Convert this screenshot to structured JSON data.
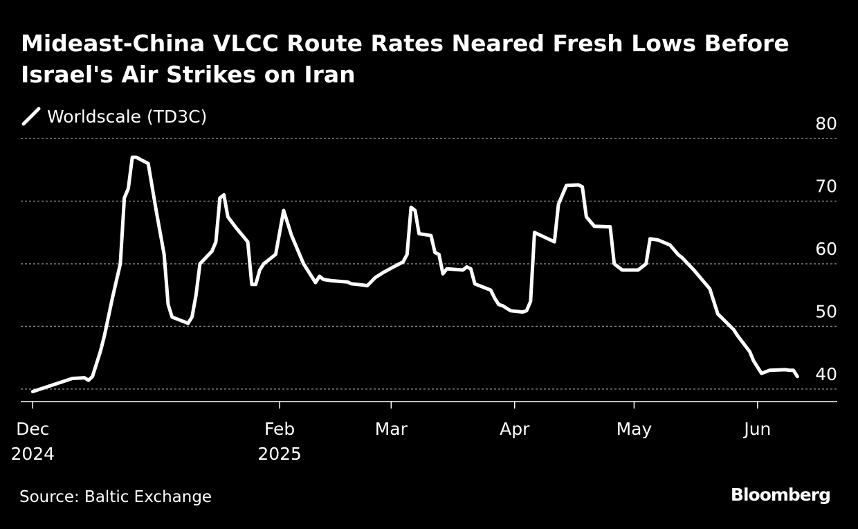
{
  "chart_data": {
    "type": "line",
    "title": "Mideast-China VLCC Route Rates Neared Fresh Lows Before Israel's Air Strikes on Iran",
    "xlabel": "",
    "ylabel": "",
    "ylim": [
      38,
      80
    ],
    "yticks": [
      40,
      50,
      60,
      70,
      80
    ],
    "xlim": [
      "2024-11-28",
      "2025-06-21"
    ],
    "xticks": [
      {
        "date": "2024-12-01",
        "label": "Dec",
        "sublabel": "2024"
      },
      {
        "date": "2025-02-01",
        "label": "Feb",
        "sublabel": "2025"
      },
      {
        "date": "2025-03-01",
        "label": "Mar",
        "sublabel": ""
      },
      {
        "date": "2025-04-01",
        "label": "Apr",
        "sublabel": ""
      },
      {
        "date": "2025-05-01",
        "label": "May",
        "sublabel": ""
      },
      {
        "date": "2025-06-01",
        "label": "Jun",
        "sublabel": ""
      }
    ],
    "grid": true,
    "legend_position": "top-left",
    "series": [
      {
        "name": "Worldscale (TD3C)",
        "color": "#ffffff",
        "points": [
          [
            "2024-12-01",
            39.6
          ],
          [
            "2024-12-11",
            41.7
          ],
          [
            "2024-12-14",
            41.8
          ],
          [
            "2024-12-15",
            41.4
          ],
          [
            "2024-12-16",
            42.0
          ],
          [
            "2024-12-18",
            46.0
          ],
          [
            "2024-12-19",
            48.5
          ],
          [
            "2024-12-21",
            54.5
          ],
          [
            "2024-12-23",
            60.0
          ],
          [
            "2024-12-24",
            70.5
          ],
          [
            "2024-12-25",
            72.0
          ],
          [
            "2024-12-26",
            77.0
          ],
          [
            "2024-12-27",
            77.0
          ],
          [
            "2024-12-30",
            76.0
          ],
          [
            "2025-01-01",
            68.5
          ],
          [
            "2025-01-03",
            61.5
          ],
          [
            "2025-01-04",
            53.5
          ],
          [
            "2025-01-05",
            51.5
          ],
          [
            "2025-01-09",
            50.5
          ],
          [
            "2025-01-10",
            51.5
          ],
          [
            "2025-01-11",
            55.0
          ],
          [
            "2025-01-12",
            60.0
          ],
          [
            "2025-01-15",
            62.0
          ],
          [
            "2025-01-16",
            63.5
          ],
          [
            "2025-01-17",
            70.5
          ],
          [
            "2025-01-18",
            71.0
          ],
          [
            "2025-01-19",
            67.5
          ],
          [
            "2025-01-21",
            65.8
          ],
          [
            "2025-01-24",
            63.5
          ],
          [
            "2025-01-25",
            56.7
          ],
          [
            "2025-01-26",
            56.7
          ],
          [
            "2025-01-27",
            59.0
          ],
          [
            "2025-01-28",
            60.0
          ],
          [
            "2025-01-30",
            61.0
          ],
          [
            "2025-01-31",
            61.5
          ],
          [
            "2025-02-02",
            68.5
          ],
          [
            "2025-02-04",
            64.5
          ],
          [
            "2025-02-07",
            60.0
          ],
          [
            "2025-02-10",
            57.0
          ],
          [
            "2025-02-11",
            58.0
          ],
          [
            "2025-02-12",
            57.5
          ],
          [
            "2025-02-14",
            57.3
          ],
          [
            "2025-02-18",
            57.1
          ],
          [
            "2025-02-19",
            56.8
          ],
          [
            "2025-02-22",
            56.6
          ],
          [
            "2025-02-23",
            56.5
          ],
          [
            "2025-02-25",
            57.8
          ],
          [
            "2025-02-27",
            58.6
          ],
          [
            "2025-03-01",
            59.3
          ],
          [
            "2025-03-04",
            60.3
          ],
          [
            "2025-03-05",
            61.5
          ],
          [
            "2025-03-06",
            69.0
          ],
          [
            "2025-03-07",
            68.5
          ],
          [
            "2025-03-08",
            64.8
          ],
          [
            "2025-03-11",
            64.5
          ],
          [
            "2025-03-12",
            61.8
          ],
          [
            "2025-03-13",
            61.5
          ],
          [
            "2025-03-14",
            58.4
          ],
          [
            "2025-03-15",
            59.2
          ],
          [
            "2025-03-19",
            59.0
          ],
          [
            "2025-03-20",
            59.5
          ],
          [
            "2025-03-21",
            59.2
          ],
          [
            "2025-03-22",
            56.8
          ],
          [
            "2025-03-26",
            55.8
          ],
          [
            "2025-03-27",
            54.5
          ],
          [
            "2025-03-28",
            53.5
          ],
          [
            "2025-03-29",
            53.3
          ],
          [
            "2025-03-31",
            52.5
          ],
          [
            "2025-04-03",
            52.3
          ],
          [
            "2025-04-04",
            52.5
          ],
          [
            "2025-04-05",
            54.0
          ],
          [
            "2025-04-06",
            65.0
          ],
          [
            "2025-04-11",
            63.5
          ],
          [
            "2025-04-12",
            69.5
          ],
          [
            "2025-04-14",
            72.5
          ],
          [
            "2025-04-17",
            72.6
          ],
          [
            "2025-04-18",
            72.3
          ],
          [
            "2025-04-19",
            67.5
          ],
          [
            "2025-04-21",
            66.0
          ],
          [
            "2025-04-25",
            65.9
          ],
          [
            "2025-04-26",
            60.0
          ],
          [
            "2025-04-28",
            59.0
          ],
          [
            "2025-05-01",
            59.0
          ],
          [
            "2025-05-02",
            59.0
          ],
          [
            "2025-05-04",
            60.0
          ],
          [
            "2025-05-05",
            64.0
          ],
          [
            "2025-05-07",
            63.8
          ],
          [
            "2025-05-10",
            63.0
          ],
          [
            "2025-05-12",
            61.5
          ],
          [
            "2025-05-13",
            61.0
          ],
          [
            "2025-05-16",
            59.0
          ],
          [
            "2025-05-20",
            56.0
          ],
          [
            "2025-05-22",
            52.0
          ],
          [
            "2025-05-26",
            49.5
          ],
          [
            "2025-05-27",
            48.5
          ],
          [
            "2025-05-30",
            46.0
          ],
          [
            "2025-05-31",
            44.5
          ],
          [
            "2025-06-02",
            42.5
          ],
          [
            "2025-06-04",
            43.0
          ],
          [
            "2025-06-08",
            43.1
          ],
          [
            "2025-06-09",
            43.0
          ],
          [
            "2025-06-10",
            43.0
          ],
          [
            "2025-06-11",
            42.0
          ]
        ]
      }
    ]
  },
  "legend": {
    "label": "Worldscale (TD3C)",
    "icon": "line-swatch-icon"
  },
  "footer": {
    "source": "Source: Baltic Exchange",
    "brand": "Bloomberg"
  },
  "colors": {
    "background": "#000000",
    "line": "#ffffff",
    "grid": "#808080",
    "text": "#ffffff"
  }
}
